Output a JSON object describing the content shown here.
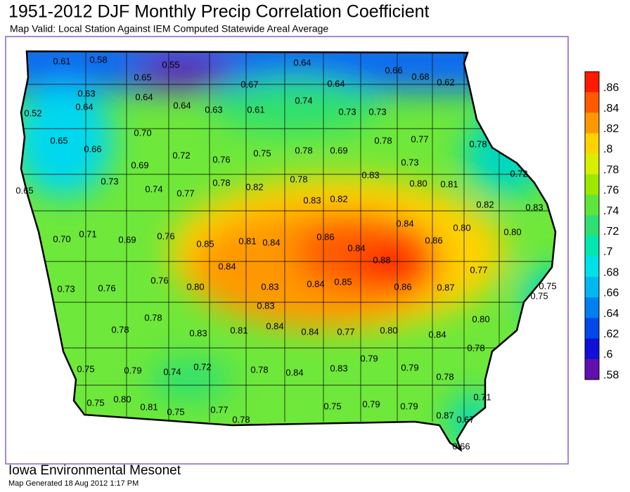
{
  "title": "1951-2012 DJF Monthly Precip Correlation Coefficient",
  "subtitle": "Map Valid: Local Station Against IEM Computed Statewide Areal Average",
  "stations": [
    "0.61",
    "0.58",
    "0.55",
    "0.64",
    "0.66",
    "0.68",
    "0.62",
    "0.65",
    "0.67",
    "0.64",
    "0.63",
    "0.64",
    "0.74",
    "0.52",
    "0.64",
    "0.64",
    "0.63",
    "0.61",
    "0.73",
    "0.73",
    "0.70",
    "0.78",
    "0.77",
    "0.78",
    "0.65",
    "0.66",
    "0.72",
    "0.76",
    "0.75",
    "0.78",
    "0.69",
    "0.73",
    "0.72",
    "0.69",
    "0.78",
    "0.82",
    "0.78",
    "0.83",
    "0.80",
    "0.81",
    "0.73",
    "0.74",
    "0.77",
    "0.65",
    "0.83",
    "0.82",
    "0.82",
    "0.83",
    "0.84",
    "0.80",
    "0.80",
    "0.70",
    "0.71",
    "0.69",
    "0.76",
    "0.85",
    "0.81",
    "0.84",
    "0.86",
    "0.84",
    "0.86",
    "0.88",
    "0.75",
    "0.77",
    "0.84",
    "0.73",
    "0.76",
    "0.76",
    "0.80",
    "0.83",
    "0.84",
    "0.85",
    "0.86",
    "0.87",
    "0.75",
    "0.83",
    "0.78",
    "0.80",
    "0.78",
    "0.83",
    "0.81",
    "0.84",
    "0.84",
    "0.77",
    "0.80",
    "0.84",
    "0.78",
    "0.75",
    "0.79",
    "0.74",
    "0.72",
    "0.78",
    "0.84",
    "0.83",
    "0.79",
    "0.79",
    "0.78",
    "0.75",
    "0.80",
    "0.81",
    "0.75",
    "0.77",
    "0.78",
    "0.75",
    "0.79",
    "0.79",
    "0.71",
    "0.87",
    "0.67",
    "0.66"
  ],
  "legend": [
    {
      "label": ".86",
      "color": "#ff1a00"
    },
    {
      "label": ".84",
      "color": "#ff5a00"
    },
    {
      "label": ".82",
      "color": "#ff9800"
    },
    {
      "label": ".8",
      "color": "#ffd200"
    },
    {
      "label": ".78",
      "color": "#d8f000"
    },
    {
      "label": ".76",
      "color": "#9ee800"
    },
    {
      "label": ".74",
      "color": "#5ee63c"
    },
    {
      "label": ".72",
      "color": "#2ee070"
    },
    {
      "label": ".7",
      "color": "#00e8b0"
    },
    {
      "label": ".68",
      "color": "#00e0e8"
    },
    {
      "label": ".66",
      "color": "#00b8f0"
    },
    {
      "label": ".64",
      "color": "#0080f0"
    },
    {
      "label": ".62",
      "color": "#0048e8"
    },
    {
      "label": ".6",
      "color": "#1010d8"
    },
    {
      "label": ".58",
      "color": "#6010b0"
    }
  ],
  "footer": {
    "title": "Iowa Environmental Mesonet",
    "generated": "Map Generated 18 Aug 2012 1:17 PM"
  }
}
